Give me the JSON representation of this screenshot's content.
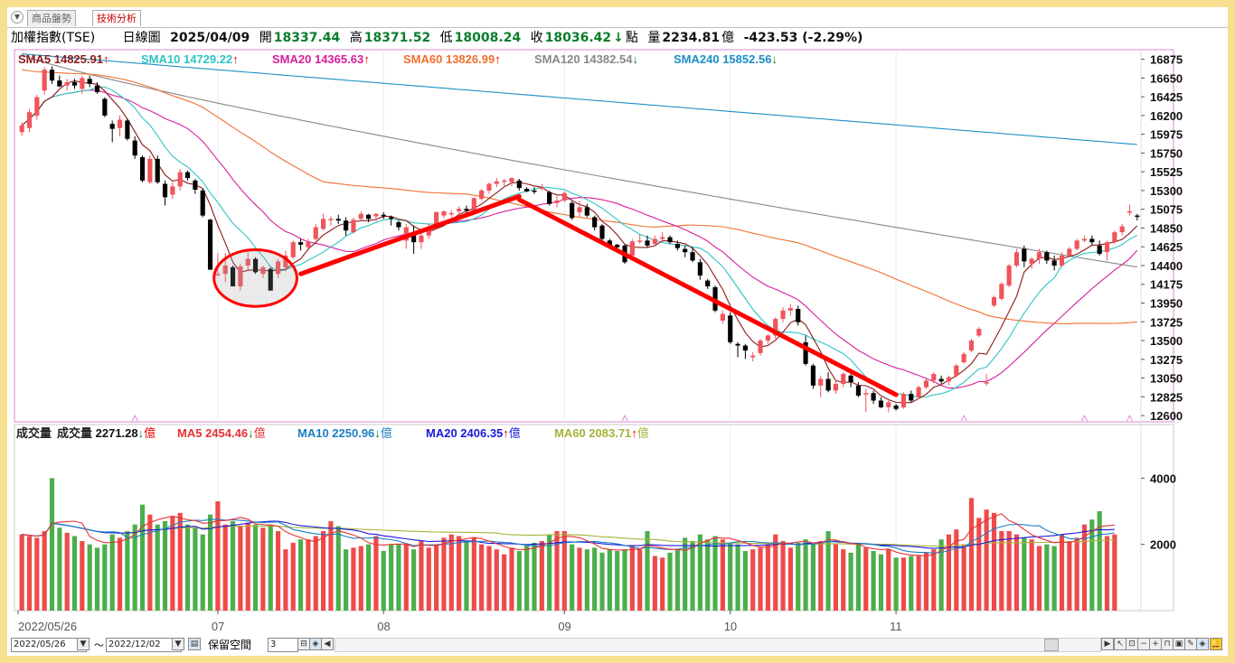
{
  "tabs": [
    {
      "label": "商品盤勢",
      "active": false
    },
    {
      "label": "技術分析",
      "active": true
    }
  ],
  "header": {
    "index_name": "加權指數(TSE)",
    "period": "日線圖",
    "date": "2025/04/09",
    "open_label": "開",
    "open": "18337.44",
    "high_label": "高",
    "high": "18371.52",
    "low_label": "低",
    "low": "18008.24",
    "close_label": "收",
    "close": "18036.42",
    "point_label": "點",
    "volume_label": "量",
    "volume": "2234.81",
    "volume_unit": "億",
    "change": "-423.53 (-2.29%)"
  },
  "colors": {
    "up": "#f0545c",
    "down": "#000000",
    "vol_up": "#ef4a4a",
    "vol_down": "#4cae4c",
    "trend": "#ff0000",
    "panel_border": "#d98ad0",
    "accent_down": "#0a7d2c"
  },
  "price_legend": [
    {
      "label": "SMA5",
      "value": "14825.91",
      "arrow": "up",
      "color": "#8b1a1a"
    },
    {
      "label": "SMA10",
      "value": "14729.22",
      "arrow": "up",
      "color": "#2ec4c4"
    },
    {
      "label": "SMA20",
      "value": "14365.63",
      "arrow": "up",
      "color": "#d61f9a"
    },
    {
      "label": "SMA60",
      "value": "13826.99",
      "arrow": "up",
      "color": "#f07030"
    },
    {
      "label": "SMA120",
      "value": "14382.54",
      "arrow": "down",
      "color": "#888888"
    },
    {
      "label": "SMA240",
      "value": "15852.56",
      "arrow": "down",
      "color": "#1c8fc4"
    }
  ],
  "volume_legend": [
    {
      "label": "成交量",
      "value": "",
      "arrow": "",
      "color": "#222222"
    },
    {
      "label": "成交量",
      "value": "2271.28",
      "arrow": "down",
      "unit": "億",
      "color": "#222222"
    },
    {
      "label": "MA5",
      "value": "2454.46",
      "arrow": "down",
      "unit": "億",
      "color": "#e53333"
    },
    {
      "label": "MA10",
      "value": "2250.96",
      "arrow": "down",
      "unit": "億",
      "color": "#1c7fc4"
    },
    {
      "label": "MA20",
      "value": "2406.35",
      "arrow": "up",
      "unit": "億",
      "color": "#1a1adc"
    },
    {
      "label": "MA60",
      "value": "2083.71",
      "arrow": "up",
      "unit": "億",
      "color": "#a7b23a"
    }
  ],
  "chart_data": {
    "type": "candlestick",
    "price_ticks": [
      "16875",
      "16650",
      "16425",
      "16200",
      "15975",
      "15750",
      "15525",
      "15300",
      "15075",
      "14850",
      "14625",
      "14400",
      "14175",
      "13950",
      "13725",
      "13500",
      "13275",
      "13050",
      "12825",
      "12600"
    ],
    "price_range": [
      12525,
      16990
    ],
    "volume_ticks": [
      "4000",
      "2000"
    ],
    "volume_range": [
      0,
      4800
    ],
    "x_labels": [
      "2022/05/26",
      "07",
      "08",
      "09",
      "10",
      "11"
    ],
    "x_label_index": [
      0,
      26,
      48,
      72,
      94,
      116
    ],
    "ohlc": [
      [
        16000,
        16120,
        15960,
        16080
      ],
      [
        16050,
        16280,
        16000,
        16240
      ],
      [
        16200,
        16450,
        16150,
        16420
      ],
      [
        16500,
        16780,
        16450,
        16750
      ],
      [
        16750,
        16790,
        16580,
        16620
      ],
      [
        16620,
        16680,
        16540,
        16550
      ],
      [
        16560,
        16640,
        16500,
        16600
      ],
      [
        16600,
        16640,
        16520,
        16560
      ],
      [
        16520,
        16680,
        16460,
        16650
      ],
      [
        16640,
        16680,
        16540,
        16580
      ],
      [
        16560,
        16600,
        16460,
        16480
      ],
      [
        16400,
        16420,
        16180,
        16200
      ],
      [
        16100,
        16140,
        15880,
        16040
      ],
      [
        16050,
        16200,
        15950,
        16150
      ],
      [
        16140,
        16160,
        15900,
        15920
      ],
      [
        15900,
        15950,
        15680,
        15720
      ],
      [
        15700,
        15720,
        15400,
        15420
      ],
      [
        15400,
        15720,
        15380,
        15680
      ],
      [
        15680,
        15720,
        15380,
        15400
      ],
      [
        15380,
        15420,
        15120,
        15220
      ],
      [
        15250,
        15400,
        15200,
        15350
      ],
      [
        15350,
        15560,
        15300,
        15520
      ],
      [
        15520,
        15540,
        15420,
        15450
      ],
      [
        15420,
        15440,
        15260,
        15310
      ],
      [
        15300,
        15320,
        14980,
        15000
      ],
      [
        14950,
        14960,
        14350,
        14350
      ],
      [
        14300,
        14550,
        14280,
        14300
      ],
      [
        14300,
        14550,
        14200,
        14400
      ],
      [
        14380,
        14400,
        14150,
        14150
      ],
      [
        14150,
        14420,
        14100,
        14390
      ],
      [
        14400,
        14560,
        14350,
        14480
      ],
      [
        14480,
        14500,
        14300,
        14320
      ],
      [
        14300,
        14400,
        14250,
        14380
      ],
      [
        14360,
        14380,
        14100,
        14100
      ],
      [
        14300,
        14480,
        14250,
        14450
      ],
      [
        14380,
        14580,
        14330,
        14520
      ],
      [
        14500,
        14700,
        14480,
        14680
      ],
      [
        14680,
        14720,
        14580,
        14650
      ],
      [
        14620,
        14720,
        14600,
        14680
      ],
      [
        14720,
        14900,
        14700,
        14860
      ],
      [
        14840,
        15020,
        14820,
        14960
      ],
      [
        14950,
        14990,
        14880,
        14960
      ],
      [
        14960,
        15010,
        14900,
        14940
      ],
      [
        14940,
        14980,
        14760,
        14820
      ],
      [
        14800,
        14980,
        14780,
        14950
      ],
      [
        14960,
        15050,
        14940,
        15020
      ],
      [
        15010,
        15020,
        14920,
        14960
      ],
      [
        14990,
        15030,
        14930,
        15020
      ],
      [
        15010,
        15040,
        14960,
        14990
      ],
      [
        14980,
        15000,
        14880,
        14960
      ],
      [
        14920,
        14940,
        14820,
        14860
      ],
      [
        14700,
        14900,
        14600,
        14860
      ],
      [
        14760,
        14880,
        14540,
        14680
      ],
      [
        14680,
        14800,
        14600,
        14760
      ],
      [
        14760,
        14900,
        14720,
        14860
      ],
      [
        14860,
        15050,
        14840,
        15040
      ],
      [
        15000,
        15060,
        14960,
        15050
      ],
      [
        15020,
        15060,
        14980,
        15030
      ],
      [
        15050,
        15110,
        15000,
        15080
      ],
      [
        15080,
        15120,
        15000,
        15060
      ],
      [
        15050,
        15220,
        15030,
        15210
      ],
      [
        15200,
        15320,
        15180,
        15300
      ],
      [
        15300,
        15400,
        15260,
        15380
      ],
      [
        15380,
        15450,
        15340,
        15410
      ],
      [
        15410,
        15440,
        15340,
        15420
      ],
      [
        15400,
        15460,
        15350,
        15450
      ],
      [
        15420,
        15440,
        15300,
        15330
      ],
      [
        15320,
        15340,
        15280,
        15290
      ],
      [
        15300,
        15340,
        15260,
        15290
      ],
      [
        15320,
        15380,
        15300,
        15340
      ],
      [
        15280,
        15300,
        15120,
        15140
      ],
      [
        15150,
        15240,
        15100,
        15180
      ],
      [
        15180,
        15290,
        15160,
        15270
      ],
      [
        15150,
        15170,
        14950,
        14970
      ],
      [
        15040,
        15180,
        14980,
        15100
      ],
      [
        15100,
        15140,
        14980,
        15000
      ],
      [
        14980,
        15000,
        14820,
        14860
      ],
      [
        14880,
        14900,
        14700,
        14720
      ],
      [
        14700,
        14720,
        14620,
        14640
      ],
      [
        14650,
        14660,
        14570,
        14620
      ],
      [
        14640,
        14650,
        14420,
        14440
      ],
      [
        14520,
        14720,
        14500,
        14690
      ],
      [
        14700,
        14780,
        14660,
        14700
      ],
      [
        14700,
        14760,
        14620,
        14640
      ],
      [
        14660,
        14760,
        14640,
        14720
      ],
      [
        14720,
        14800,
        14680,
        14740
      ],
      [
        14740,
        14760,
        14660,
        14680
      ],
      [
        14660,
        14700,
        14580,
        14610
      ],
      [
        14600,
        14640,
        14500,
        14560
      ],
      [
        14560,
        14620,
        14440,
        14460
      ],
      [
        14440,
        14480,
        14230,
        14280
      ],
      [
        14220,
        14240,
        14120,
        14150
      ],
      [
        14140,
        14160,
        13840,
        13860
      ],
      [
        13740,
        13860,
        13700,
        13820
      ],
      [
        13800,
        13840,
        13460,
        13480
      ],
      [
        13460,
        13480,
        13300,
        13440
      ],
      [
        13440,
        13460,
        13280,
        13380
      ],
      [
        13300,
        13360,
        13250,
        13320
      ],
      [
        13350,
        13520,
        13320,
        13500
      ],
      [
        13500,
        13580,
        13460,
        13560
      ],
      [
        13560,
        13780,
        13520,
        13760
      ],
      [
        13760,
        13900,
        13720,
        13860
      ],
      [
        13860,
        13940,
        13800,
        13890
      ],
      [
        13880,
        13920,
        13680,
        13720
      ],
      [
        13480,
        13560,
        13200,
        13220
      ],
      [
        13200,
        13220,
        12920,
        12960
      ],
      [
        12960,
        13080,
        12820,
        13040
      ],
      [
        13040,
        13120,
        12880,
        12900
      ],
      [
        12900,
        13020,
        12860,
        12980
      ],
      [
        12980,
        13120,
        12940,
        13100
      ],
      [
        13080,
        13100,
        12940,
        13000
      ],
      [
        12960,
        13000,
        12820,
        12840
      ],
      [
        12860,
        12920,
        12640,
        12870
      ],
      [
        12870,
        12900,
        12740,
        12780
      ],
      [
        12780,
        12820,
        12690,
        12700
      ],
      [
        12700,
        12780,
        12640,
        12760
      ],
      [
        12720,
        12740,
        12660,
        12680
      ],
      [
        12700,
        12880,
        12680,
        12860
      ],
      [
        12860,
        12900,
        12760,
        12780
      ],
      [
        12820,
        12960,
        12800,
        12940
      ],
      [
        12940,
        13040,
        12920,
        13020
      ],
      [
        13020,
        13120,
        12990,
        13100
      ],
      [
        13040,
        13080,
        12980,
        13010
      ],
      [
        13010,
        13080,
        12960,
        13060
      ],
      [
        13080,
        13220,
        13060,
        13200
      ],
      [
        13240,
        13360,
        13220,
        13340
      ],
      [
        13380,
        13520,
        13360,
        13500
      ],
      [
        13560,
        13660,
        13540,
        13640
      ],
      [
        13000,
        13100,
        12960,
        13000
      ],
      [
        13920,
        14040,
        13900,
        14020
      ],
      [
        14000,
        14200,
        13980,
        14180
      ],
      [
        14160,
        14420,
        14140,
        14400
      ],
      [
        14400,
        14600,
        14380,
        14560
      ],
      [
        14600,
        14640,
        14380,
        14450
      ],
      [
        14420,
        14500,
        14360,
        14480
      ],
      [
        14480,
        14600,
        14420,
        14560
      ],
      [
        14560,
        14580,
        14420,
        14460
      ],
      [
        14460,
        14520,
        14340,
        14400
      ],
      [
        14400,
        14560,
        14380,
        14520
      ],
      [
        14520,
        14620,
        14500,
        14600
      ],
      [
        14600,
        14720,
        14580,
        14700
      ],
      [
        14700,
        14760,
        14680,
        14720
      ],
      [
        14720,
        14760,
        14640,
        14680
      ],
      [
        14640,
        14700,
        14520,
        14540
      ],
      [
        14560,
        14700,
        14460,
        14680
      ],
      [
        14680,
        14820,
        14660,
        14800
      ],
      [
        14800,
        14900,
        14760,
        14870
      ],
      [
        15050,
        15130,
        15000,
        15050
      ],
      [
        15000,
        15020,
        14940,
        14990
      ]
    ],
    "volume": [
      2300,
      2250,
      2200,
      2400,
      4000,
      2500,
      2350,
      2250,
      2100,
      2000,
      1900,
      2000,
      2300,
      2200,
      2400,
      2600,
      3200,
      2900,
      2600,
      2700,
      2850,
      2950,
      2600,
      2500,
      2300,
      2900,
      3300,
      2600,
      2700,
      2550,
      2650,
      2600,
      2500,
      2600,
      2400,
      1850,
      2050,
      2150,
      2150,
      2250,
      2400,
      2700,
      2550,
      1850,
      1900,
      1950,
      2000,
      2250,
      1800,
      2000,
      2000,
      2000,
      1850,
      2100,
      1900,
      2000,
      2200,
      2300,
      2250,
      2100,
      2200,
      2000,
      1950,
      1850,
      1700,
      1900,
      1800,
      2000,
      2050,
      2100,
      2300,
      2400,
      2400,
      2000,
      1900,
      1850,
      1900,
      1750,
      1850,
      1800,
      1850,
      1950,
      1850,
      2400,
      1650,
      1600,
      1750,
      1850,
      2200,
      2100,
      2300,
      2150,
      2250,
      2150,
      2050,
      2000,
      1800,
      1850,
      1900,
      2000,
      2300,
      2100,
      1900,
      2050,
      2150,
      2000,
      2100,
      2400,
      2000,
      1850,
      1750,
      2050,
      1900,
      1800,
      1700,
      1850,
      1600,
      1600,
      1650,
      1650,
      1750,
      1850,
      2150,
      2300,
      2450,
      2000,
      3400,
      2800,
      3050,
      2950,
      2400,
      2400,
      2300,
      2200,
      2150,
      1950,
      2000,
      1950,
      2300,
      2100,
      2200,
      2600,
      2750,
      3000,
      2250,
      2300
    ],
    "trendlines": [
      {
        "from_index": 37,
        "from_value": 14300,
        "to_index": 66,
        "to_value": 15230
      },
      {
        "from_index": 66,
        "from_value": 15190,
        "to_index": 116,
        "to_value": 12850
      }
    ],
    "circle_annotation": {
      "center_index": 31,
      "center_value": 14250,
      "rx_bars": 5.5,
      "ry_value": 340
    }
  },
  "bottom_bar": {
    "start_date": "2022/05/26",
    "end_date": "2022/12/02",
    "tilde": "～",
    "reserve_label": "保留空間",
    "reserve_value": "3"
  }
}
